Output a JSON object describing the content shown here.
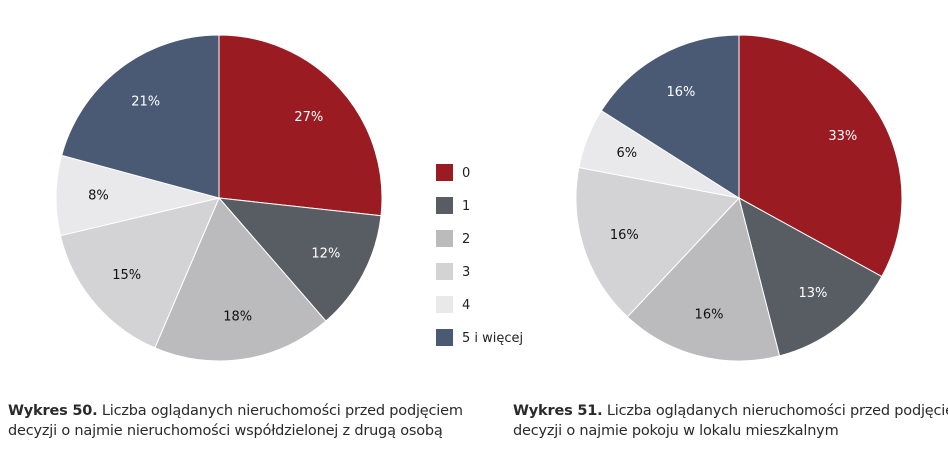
{
  "colors": {
    "0": "#9B1B22",
    "1": "#585C63",
    "2": "#BBBBBD",
    "3": "#D3D3D5",
    "4": "#E9E9EB",
    "5 i więcej": "#4A5A74"
  },
  "legend": {
    "items": [
      "0",
      "1",
      "2",
      "3",
      "4",
      "5 i więcej"
    ]
  },
  "chart_data": [
    {
      "type": "pie",
      "categories": [
        "0",
        "1",
        "2",
        "3",
        "4",
        "5 i więcej"
      ],
      "values": [
        27,
        12,
        18,
        15,
        8,
        21
      ],
      "value_labels": [
        "27%",
        "12%",
        "18%",
        "15%",
        "8%",
        "21%"
      ],
      "title": ""
    },
    {
      "type": "pie",
      "categories": [
        "0",
        "1",
        "2",
        "3",
        "4",
        "5 i więcej"
      ],
      "values": [
        33,
        13,
        16,
        16,
        6,
        16
      ],
      "value_labels": [
        "33%",
        "13%",
        "16%",
        "16%",
        "6%",
        "16%"
      ],
      "title": ""
    }
  ],
  "captions": [
    {
      "label": "Wykres 50.",
      "line1": "Liczba oglądanych nieruchomości przed podjęciem",
      "line2": "decyzji o najmie nieruchomości współdzielonej z drugą osobą"
    },
    {
      "label": "Wykres 51.",
      "line1": "Liczba oglądanych nieruchomości przed podjęciem",
      "line2": "decyzji o najmie pokoju w lokalu mieszkalnym"
    }
  ]
}
